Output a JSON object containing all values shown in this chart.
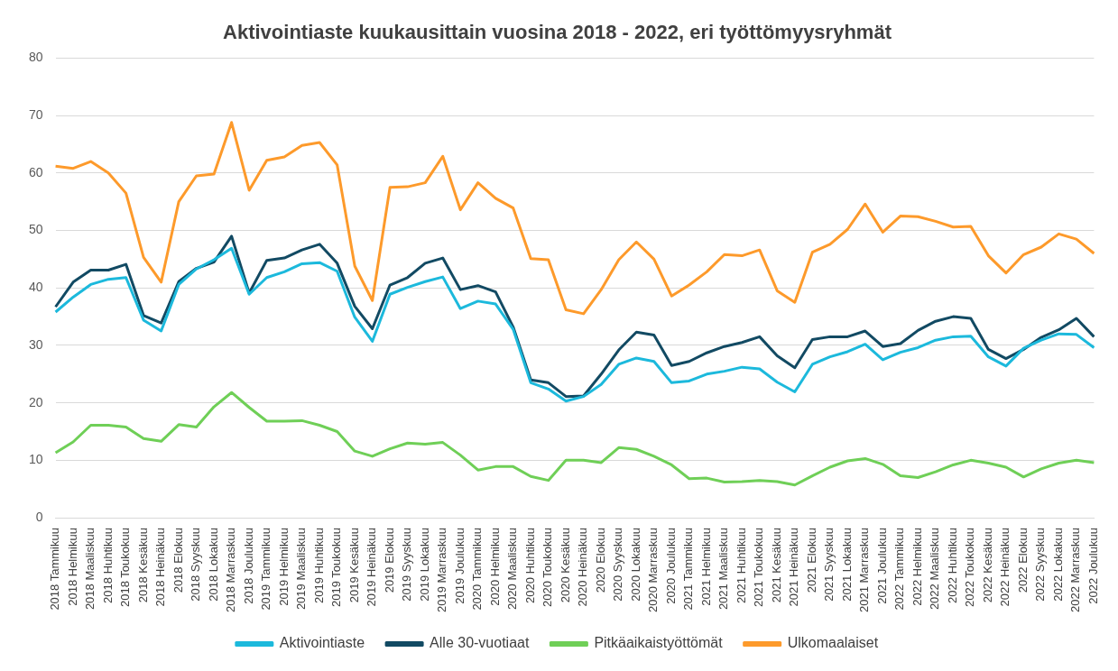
{
  "chart_data": {
    "type": "line",
    "title": "Aktivointiaste kuukausittain vuosina 2018 - 2022, eri työttömyysryhmät",
    "categories": [
      "2018 Tammikuu",
      "2018 Helmikuu",
      "2018 Maaliskuu",
      "2018 Huhtikuu",
      "2018 Toukokuu",
      "2018 Kesäkuu",
      "2018 Heinäkuu",
      "2018 Elokuu",
      "2018 Syyskuu",
      "2018 Lokakuu",
      "2018 Marraskuu",
      "2018 Joulukuu",
      "2019 Tammikuu",
      "2019 Helmikuu",
      "2019 Maaliskuu",
      "2019 Huhtikuu",
      "2019 Toukokuu",
      "2019 Kesäkuu",
      "2019 Heinäkuu",
      "2019 Elokuu",
      "2019 Syyskuu",
      "2019 Lokakuu",
      "2019 Marraskuu",
      "2019 Joulukuu",
      "2020 Tammikuu",
      "2020 Helmikuu",
      "2020 Maaliskuu",
      "2020 Huhtikuu",
      "2020 Toukokuu",
      "2020 Kesäkuu",
      "2020 Heinäkuu",
      "2020 Elokuu",
      "2020 Syyskuu",
      "2020 Lokakuu",
      "2020 Marraskuu",
      "2020 Joulukuu",
      "2021 Tammikuu",
      "2021 Helmikuu",
      "2021 Maaliskuu",
      "2021 Huhtikuu",
      "2021 Toukokuu",
      "2021 Kesäkuu",
      "2021 Heinäkuu",
      "2021 Elokuu",
      "2021 Syyskuu",
      "2021 Lokakuu",
      "2021 Marraskuu",
      "2021 Joulukuu",
      "2022 Tammikuu",
      "2022 Helmikuu",
      "2022 Maaliskuu",
      "2022 Huhtikuu",
      "2022 Toukokuu",
      "2022 Kesäkuu",
      "2022 Heinäkuu",
      "2022 Elokuu",
      "2022 Syyskuu",
      "2022 Lokakuu",
      "2022 Marraskuu",
      "2022 Joulukuu"
    ],
    "series": [
      {
        "name": "Aktivointiaste",
        "color": "#1cb9dc",
        "values": [
          35.8,
          38.4,
          40.6,
          41.5,
          41.8,
          34.4,
          32.5,
          40.6,
          43.3,
          44.9,
          46.9,
          38.9,
          41.8,
          42.8,
          44.2,
          44.4,
          42.9,
          34.9,
          30.7,
          38.9,
          40.1,
          41.1,
          41.9,
          36.4,
          37.7,
          37.2,
          32.8,
          23.5,
          22.4,
          20.3,
          21.1,
          23.2,
          26.7,
          27.8,
          27.2,
          23.5,
          23.8,
          25.0,
          25.5,
          26.2,
          25.9,
          23.6,
          21.9,
          26.7,
          28.0,
          28.9,
          30.2,
          27.5,
          28.8,
          29.6,
          30.9,
          31.5,
          31.6,
          28.0,
          26.4,
          29.5,
          30.9,
          32.0,
          31.9,
          29.6
        ]
      },
      {
        "name": "Alle 30-vuotiaat",
        "color": "#124a63",
        "values": [
          36.7,
          41.0,
          43.1,
          43.1,
          44.1,
          35.2,
          33.9,
          41.1,
          43.4,
          44.5,
          49.0,
          39.1,
          44.8,
          45.2,
          46.6,
          47.6,
          44.3,
          36.8,
          32.9,
          40.5,
          41.8,
          44.3,
          45.2,
          39.7,
          40.4,
          39.3,
          33.2,
          24.0,
          23.5,
          21.1,
          21.2,
          25.0,
          29.2,
          32.3,
          31.8,
          26.5,
          27.2,
          28.7,
          29.8,
          30.5,
          31.5,
          28.2,
          26.1,
          31.0,
          31.5,
          31.5,
          32.5,
          29.8,
          30.3,
          32.6,
          34.2,
          35.0,
          34.7,
          29.3,
          27.7,
          29.3,
          31.4,
          32.7,
          34.7,
          31.5
        ]
      },
      {
        "name": "Pitkäaikaistyöttömät",
        "color": "#6fcf57",
        "values": [
          11.3,
          13.2,
          16.1,
          16.1,
          15.8,
          13.8,
          13.3,
          16.2,
          15.8,
          19.3,
          21.8,
          19.2,
          16.8,
          16.8,
          16.9,
          16.1,
          15.0,
          11.6,
          10.7,
          12.0,
          13.0,
          12.8,
          13.1,
          10.9,
          8.3,
          8.9,
          8.9,
          7.2,
          6.5,
          10.0,
          10.0,
          9.6,
          12.2,
          11.9,
          10.7,
          9.2,
          6.8,
          6.9,
          6.2,
          6.3,
          6.5,
          6.3,
          5.7,
          7.3,
          8.8,
          9.9,
          10.3,
          9.3,
          7.3,
          7.0,
          8.0,
          9.2,
          10.0,
          9.5,
          8.8,
          7.1,
          8.5,
          9.5,
          10.0,
          9.6
        ]
      },
      {
        "name": "Ulkomaalaiset",
        "color": "#fd9a2b",
        "values": [
          61.2,
          60.8,
          62.0,
          60.0,
          56.5,
          45.3,
          41.0,
          55.0,
          59.5,
          59.8,
          68.8,
          57.0,
          62.2,
          62.8,
          64.8,
          65.3,
          61.4,
          43.8,
          37.8,
          57.5,
          57.6,
          58.3,
          62.9,
          53.6,
          58.3,
          55.6,
          53.9,
          45.1,
          44.9,
          36.2,
          35.5,
          39.7,
          44.9,
          48.0,
          45.0,
          38.6,
          40.5,
          42.8,
          45.8,
          45.6,
          46.6,
          39.5,
          37.5,
          46.2,
          47.6,
          50.2,
          54.6,
          49.7,
          52.5,
          52.4,
          51.6,
          50.6,
          50.7,
          45.6,
          42.6,
          45.8,
          47.1,
          49.4,
          48.5,
          46.0
        ]
      }
    ],
    "ylim": [
      0,
      80
    ],
    "yticks": [
      0,
      10,
      20,
      30,
      40,
      50,
      60,
      70,
      80
    ],
    "grid": "y",
    "legend": "bottom",
    "marker": "none",
    "line_style": "solid"
  }
}
